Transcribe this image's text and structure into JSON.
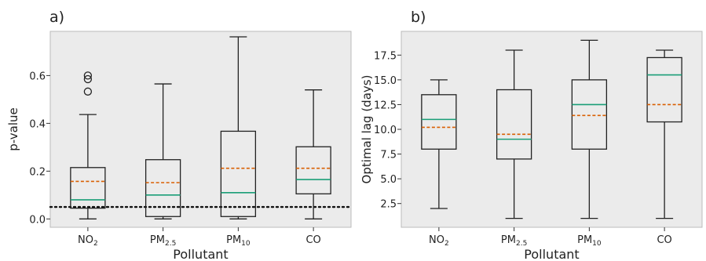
{
  "chart_data": [
    {
      "type": "box",
      "panel_label": "a)",
      "xlabel": "Pollutant",
      "ylabel": "p-value",
      "ylim": [
        -0.035,
        0.785
      ],
      "yticks": [
        0.0,
        0.2,
        0.4,
        0.6
      ],
      "ytick_labels": [
        "0.0",
        "0.2",
        "0.4",
        "0.6"
      ],
      "categories": [
        {
          "base": "NO",
          "sub": "2"
        },
        {
          "base": "PM",
          "sub": "2.5"
        },
        {
          "base": "PM",
          "sub": "10"
        },
        {
          "base": "CO",
          "sub": ""
        }
      ],
      "boxes": [
        {
          "whislo": 0.0,
          "q1": 0.045,
          "median": 0.08,
          "mean": 0.157,
          "q3": 0.215,
          "whishi": 0.437,
          "fliers": [
            0.533,
            0.585,
            0.6
          ]
        },
        {
          "whislo": 0.0,
          "q1": 0.01,
          "median": 0.1,
          "mean": 0.152,
          "q3": 0.248,
          "whishi": 0.565,
          "fliers": []
        },
        {
          "whislo": 0.0,
          "q1": 0.01,
          "median": 0.11,
          "mean": 0.212,
          "q3": 0.367,
          "whishi": 0.762,
          "fliers": []
        },
        {
          "whislo": 0.0,
          "q1": 0.105,
          "median": 0.165,
          "mean": 0.212,
          "q3": 0.302,
          "whishi": 0.54,
          "fliers": []
        }
      ],
      "reference_line": {
        "y": 0.05,
        "style": "dotted"
      },
      "grid": false
    },
    {
      "type": "box",
      "panel_label": "b)",
      "xlabel": "Pollutant",
      "ylabel": "Optimal lag (days)",
      "ylim": [
        0.1,
        19.9
      ],
      "yticks": [
        2.5,
        5.0,
        7.5,
        10.0,
        12.5,
        15.0,
        17.5
      ],
      "ytick_labels": [
        "2.5",
        "5.0",
        "7.5",
        "10.0",
        "12.5",
        "15.0",
        "17.5"
      ],
      "categories": [
        {
          "base": "NO",
          "sub": "2"
        },
        {
          "base": "PM",
          "sub": "2.5"
        },
        {
          "base": "PM",
          "sub": "10"
        },
        {
          "base": "CO",
          "sub": ""
        }
      ],
      "boxes": [
        {
          "whislo": 2.0,
          "q1": 8.0,
          "median": 11.0,
          "mean": 10.2,
          "q3": 13.5,
          "whishi": 15.0,
          "fliers": []
        },
        {
          "whislo": 1.0,
          "q1": 7.0,
          "median": 9.0,
          "mean": 9.5,
          "q3": 14.0,
          "whishi": 18.0,
          "fliers": []
        },
        {
          "whislo": 1.0,
          "q1": 8.0,
          "median": 12.5,
          "mean": 11.4,
          "q3": 15.0,
          "whishi": 19.0,
          "fliers": []
        },
        {
          "whislo": 1.0,
          "q1": 10.75,
          "median": 15.5,
          "mean": 12.5,
          "q3": 17.25,
          "whishi": 18.0,
          "fliers": []
        }
      ],
      "grid": false
    }
  ],
  "colors": {
    "median": "#1a9e77",
    "mean": "#d95f02",
    "axes_face": "#ebebeb",
    "box": "#222222"
  }
}
